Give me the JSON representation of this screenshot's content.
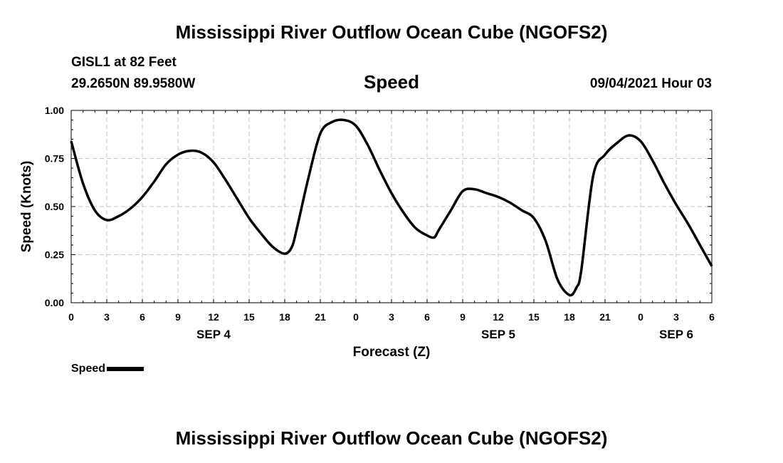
{
  "header": {
    "title": "Mississippi River Outflow Ocean Cube (NGOFS2)",
    "station": "GISL1 at 82 Feet",
    "coords": "29.2650N  89.9580W",
    "variable": "Speed",
    "datetime": "09/04/2021 Hour 03"
  },
  "footer": {
    "title": "Mississippi River Outflow Ocean Cube (NGOFS2)"
  },
  "legend": {
    "label": "Speed",
    "color": "#000000"
  },
  "chart_data": {
    "type": "line",
    "xlabel": "Forecast (Z)",
    "ylabel": "Speed (Knots)",
    "xlim": [
      0,
      54
    ],
    "ylim": [
      0,
      1
    ],
    "grid": true,
    "x_tick_values": [
      0,
      3,
      6,
      9,
      12,
      15,
      18,
      21,
      24,
      27,
      30,
      33,
      36,
      39,
      42,
      45,
      48,
      51,
      54
    ],
    "x_tick_labels": [
      "0",
      "3",
      "6",
      "9",
      "12",
      "15",
      "18",
      "21",
      "0",
      "3",
      "6",
      "9",
      "12",
      "15",
      "18",
      "21",
      "0",
      "3",
      "6"
    ],
    "y_tick_values": [
      0,
      0.25,
      0.5,
      0.75,
      1.0
    ],
    "y_tick_labels": [
      "0.00",
      "0.25",
      "0.50",
      "0.75",
      "1.00"
    ],
    "date_labels": [
      {
        "label": "SEP 4",
        "x": 12
      },
      {
        "label": "SEP 5",
        "x": 36
      },
      {
        "label": "SEP 6",
        "x": 51
      }
    ],
    "series": [
      {
        "name": "Speed",
        "color": "#000000",
        "x": [
          0,
          1,
          2,
          3,
          4,
          5,
          6,
          7,
          8,
          9,
          10,
          11,
          12,
          13,
          14,
          15,
          16,
          17,
          18,
          18.6,
          19,
          20,
          21,
          22,
          23,
          24,
          25,
          26,
          27,
          28,
          29,
          30,
          30.6,
          31,
          32,
          33,
          34,
          35,
          36,
          37,
          38,
          39,
          40,
          41,
          42,
          42.6,
          43,
          44,
          45,
          46,
          47,
          48,
          49,
          50,
          51,
          52,
          53,
          54
        ],
        "y": [
          0.84,
          0.62,
          0.48,
          0.43,
          0.45,
          0.49,
          0.55,
          0.63,
          0.72,
          0.77,
          0.79,
          0.78,
          0.73,
          0.64,
          0.54,
          0.44,
          0.36,
          0.29,
          0.255,
          0.29,
          0.38,
          0.65,
          0.88,
          0.94,
          0.95,
          0.92,
          0.82,
          0.69,
          0.57,
          0.47,
          0.39,
          0.35,
          0.34,
          0.38,
          0.48,
          0.58,
          0.59,
          0.57,
          0.55,
          0.52,
          0.48,
          0.44,
          0.32,
          0.12,
          0.04,
          0.08,
          0.17,
          0.66,
          0.77,
          0.83,
          0.87,
          0.84,
          0.74,
          0.62,
          0.51,
          0.41,
          0.3,
          0.19
        ]
      }
    ]
  }
}
